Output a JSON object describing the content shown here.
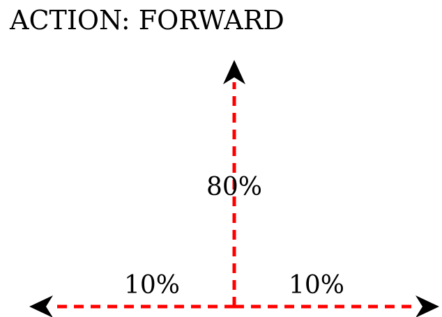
{
  "title": "ACTION: FORWARD",
  "outcomes": {
    "forward": {
      "probability_label": "80%",
      "direction": "up"
    },
    "left": {
      "probability_label": "10%",
      "direction": "left"
    },
    "right": {
      "probability_label": "10%",
      "direction": "right"
    }
  },
  "colors": {
    "path": "#ff0000",
    "arrowhead": "#000000",
    "text": "#000000",
    "background": "#ffffff"
  },
  "icons": {
    "arrowhead": "arrowhead-icon"
  }
}
